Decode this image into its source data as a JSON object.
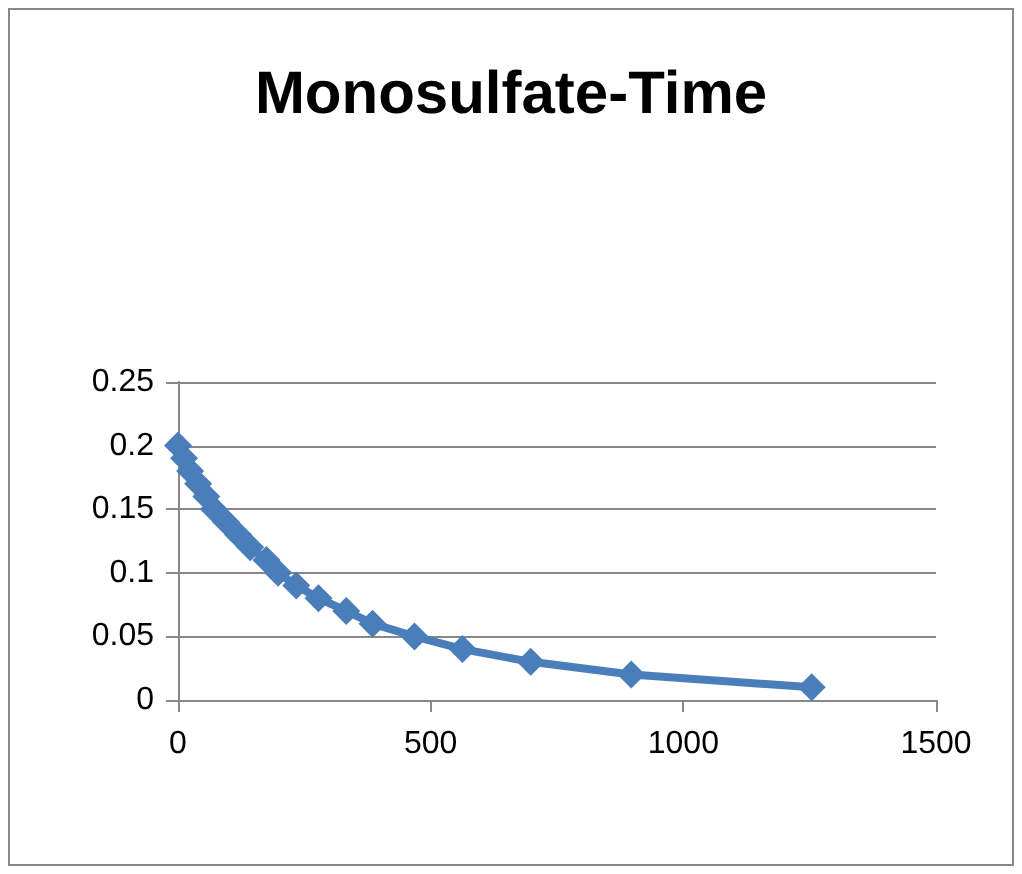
{
  "chart_data": {
    "type": "line",
    "title": "Monosulfate-Time",
    "x": [
      0,
      12,
      24,
      40,
      56,
      71,
      95,
      119,
      143,
      175,
      198,
      234,
      278,
      333,
      385,
      468,
      563,
      698,
      897,
      1254
    ],
    "series": [
      {
        "color": "#4a7ebb",
        "values": [
          0.2,
          0.19,
          0.18,
          0.17,
          0.16,
          0.15,
          0.14,
          0.13,
          0.12,
          0.11,
          0.1,
          0.09,
          0.08,
          0.07,
          0.06,
          0.05,
          0.04,
          0.03,
          0.02,
          0.01
        ]
      }
    ],
    "xlim": [
      0,
      1500
    ],
    "xticks": [
      0,
      500,
      1000,
      1500
    ],
    "ylim": [
      0,
      0.25
    ],
    "yticks": [
      0,
      0.05,
      0.1,
      0.15,
      0.2,
      0.25
    ],
    "grid": "y",
    "marker": "diamond",
    "line_style": "solid"
  }
}
